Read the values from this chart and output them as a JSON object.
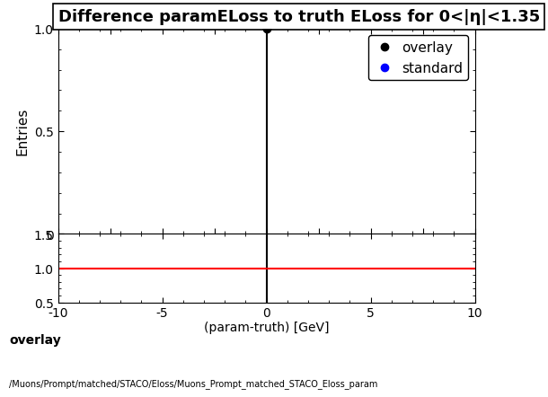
{
  "title": "Difference paramELoss to truth ELoss for 0<|η|<1.35",
  "xlabel": "(param-truth) [GeV]",
  "ylabel_main": "Entries",
  "xlim": [
    -10,
    10
  ],
  "ylim_main": [
    0,
    1.0
  ],
  "ylim_ratio": [
    0.5,
    1.5
  ],
  "ratio_yticks": [
    0.5,
    1.0,
    1.5
  ],
  "main_yticks": [
    0,
    0.5,
    1.0
  ],
  "overlay_x": [
    0.0
  ],
  "overlay_y": [
    1.0
  ],
  "overlay_color": "#000000",
  "overlay_label": "overlay",
  "standard_color": "#0000ff",
  "standard_label": "standard",
  "vertical_line_x": 0.0,
  "ratio_line_y": 1.0,
  "ratio_line_color": "#ff0000",
  "footer_text1": "overlay",
  "footer_text2": "/Muons/Prompt/matched/STACO/Eloss/Muons_Prompt_matched_STACO_Eloss_param",
  "background_color": "#ffffff",
  "title_fontsize": 13,
  "axis_fontsize": 11,
  "tick_fontsize": 10,
  "legend_fontsize": 11
}
